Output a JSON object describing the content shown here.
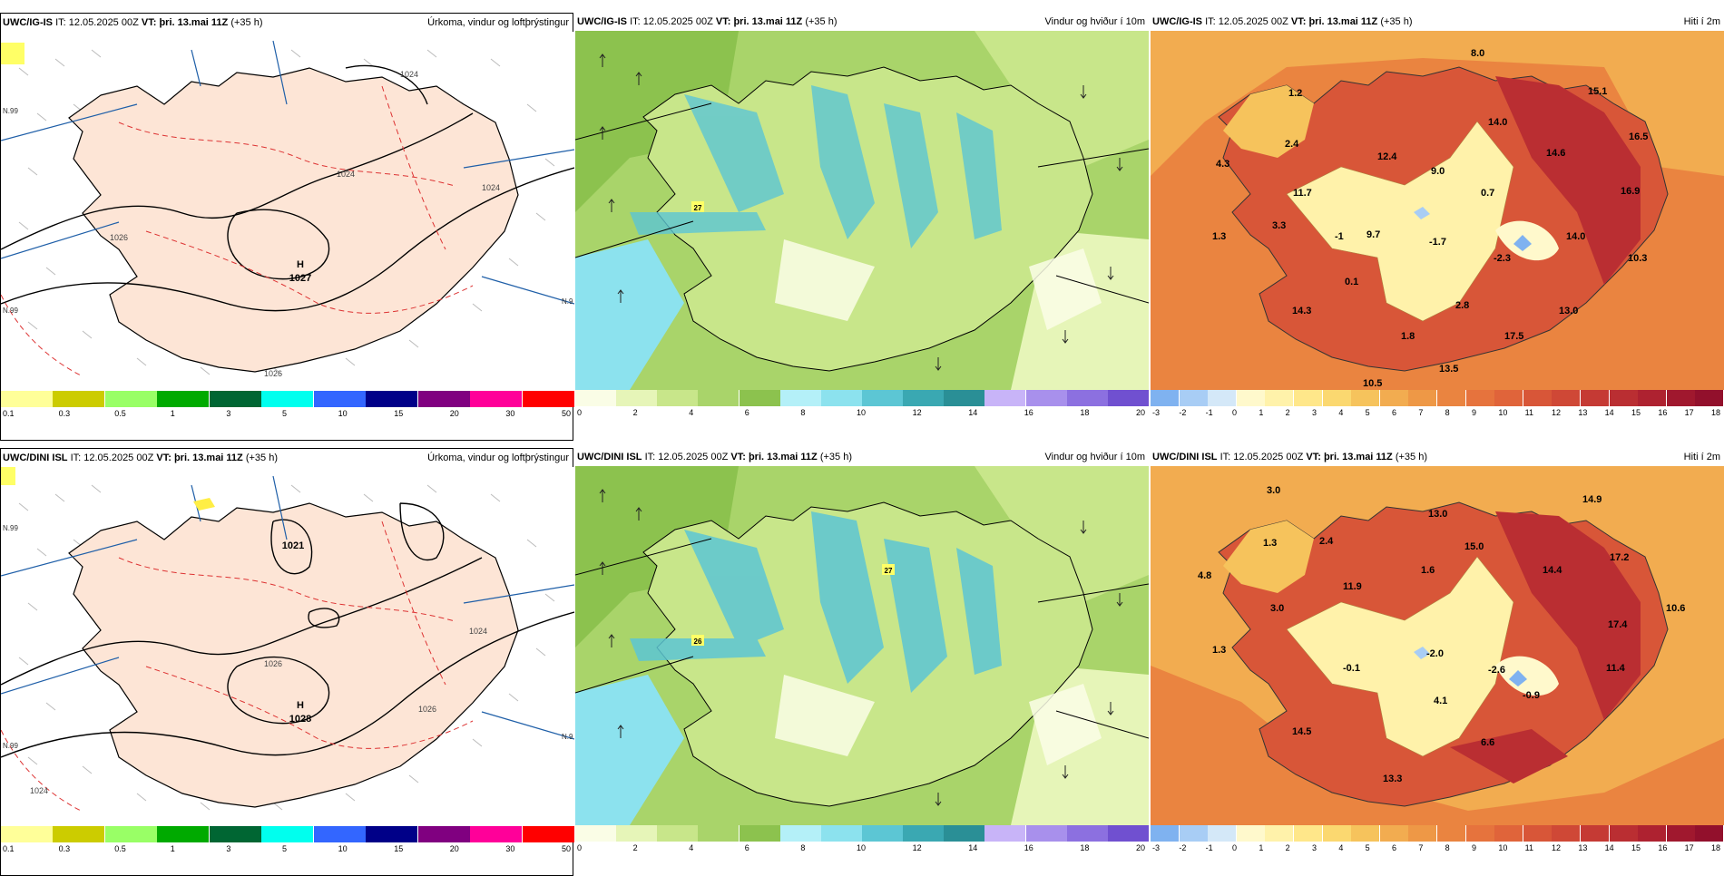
{
  "panels": [
    {
      "model": "UWC/IG-IS",
      "it_label": "IT:",
      "it": "12.05.2025 00Z",
      "vt_label": "VT:",
      "vt": "þri. 13.mai 11Z",
      "lead": "(+35 h)",
      "title": "Úrkoma, vindur og loftþrýstingur",
      "kind": "precip",
      "pressure_center": {
        "letter": "H",
        "value": "1027"
      },
      "isobar_labels": [
        "1024",
        "1024",
        "1024",
        "1026",
        "1026"
      ],
      "grid_labels": [
        "N.99",
        "N.99",
        "N.9"
      ]
    },
    {
      "model": "UWC/IG-IS",
      "it_label": "IT:",
      "it": "12.05.2025 00Z",
      "vt_label": "VT:",
      "vt": "þri. 13.mai 11Z",
      "lead": "(+35 h)",
      "title": "Vindur og hviður í 10m",
      "kind": "wind",
      "gust_label": "27"
    },
    {
      "model": "UWC/IG-IS",
      "it_label": "IT:",
      "it": "12.05.2025 00Z",
      "vt_label": "VT:",
      "vt": "þri. 13.mai 11Z",
      "lead": "(+35 h)",
      "title": "Hiti í 2m",
      "kind": "temp",
      "temps": [
        "8.0",
        "1.2",
        "15.1",
        "14.0",
        "16.5",
        "2.4",
        "4.3",
        "12.4",
        "14.6",
        "9.0",
        "11.7",
        "0.7",
        "16.9",
        "3.3",
        "9.7",
        "-1.7",
        "14.0",
        "1.3",
        "-1",
        "-2.3",
        "10.3",
        "0.1",
        "14.3",
        "2.8",
        "13.0",
        "1.8",
        "17.5",
        "13.5",
        "10.5"
      ]
    },
    {
      "model": "UWC/DINI ISL",
      "it_label": "IT:",
      "it": "12.05.2025 00Z",
      "vt_label": "VT:",
      "vt": "þri. 13.mai 11Z",
      "lead": "(+35 h)",
      "title": "Úrkoma, vindur og loftþrýstingur",
      "kind": "precip",
      "pressure_center": {
        "letter": "H",
        "value": "1028"
      },
      "isobar_labels": [
        "1021",
        "1024",
        "1026",
        "1026",
        "1024"
      ],
      "grid_labels": [
        "N.99",
        "N.99",
        "N.9"
      ]
    },
    {
      "model": "UWC/DINI ISL",
      "it_label": "IT:",
      "it": "12.05.2025 00Z",
      "vt_label": "VT:",
      "vt": "þri. 13.mai 11Z",
      "lead": "(+35 h)",
      "title": "Vindur og hviður í 10m",
      "kind": "wind",
      "gust_label": "27",
      "gust_label2": "26"
    },
    {
      "model": "UWC/DINI ISL",
      "it_label": "IT:",
      "it": "12.05.2025 00Z",
      "vt_label": "VT:",
      "vt": "þri. 13.mai 11Z",
      "lead": "(+35 h)",
      "title": "Hiti í 2m",
      "kind": "temp",
      "temps": [
        "3.0",
        "14.9",
        "13.0",
        "1.3",
        "2.4",
        "15.0",
        "17.2",
        "4.8",
        "1.6",
        "14.4",
        "11.9",
        "3.0",
        "10.6",
        "17.4",
        "1.3",
        "-0.1",
        "-2.0",
        "-2.6",
        "11.4",
        "-0.9",
        "4.1",
        "14.5",
        "6.6",
        "13.3"
      ]
    }
  ],
  "colorbars": {
    "precip": {
      "colors": [
        "#ffff99",
        "#cccc00",
        "#99ff66",
        "#00aa00",
        "#006633",
        "#00ffee",
        "#3366ff",
        "#000088",
        "#800080",
        "#ff0099",
        "#ff0000"
      ],
      "labels": [
        "0.1",
        "0.3",
        "0.5",
        "1",
        "3",
        "5",
        "10",
        "15",
        "20",
        "30",
        "50"
      ]
    },
    "wind": {
      "colors": [
        "#fafde6",
        "#e6f5b8",
        "#c8e68a",
        "#a9d46a",
        "#8cc24e",
        "#b4f0f8",
        "#8ce2ee",
        "#5cc6d4",
        "#3aa8b2",
        "#2a8f96",
        "#c8b4f8",
        "#a890ec",
        "#8c70e0",
        "#7050d0"
      ],
      "labels": [
        "0",
        "2",
        "4",
        "6",
        "8",
        "10",
        "12",
        "14",
        "16",
        "18",
        "20"
      ]
    },
    "temp": {
      "colors": [
        "#7fb2f0",
        "#a8cdf5",
        "#d4e8f8",
        "#fff9cc",
        "#fff2aa",
        "#ffe78a",
        "#fbd870",
        "#f6c35c",
        "#f2ac50",
        "#ee9846",
        "#ea8440",
        "#e6733d",
        "#e0643a",
        "#d85638",
        "#cf4836",
        "#c53a34",
        "#ba2e32",
        "#ae2230",
        "#a0182e",
        "#92102c"
      ],
      "labels": [
        "-3",
        "-2",
        "-1",
        "0",
        "1",
        "2",
        "3",
        "4",
        "5",
        "6",
        "7",
        "8",
        "9",
        "10",
        "11",
        "12",
        "13",
        "14",
        "15",
        "16",
        "17",
        "18"
      ]
    }
  }
}
